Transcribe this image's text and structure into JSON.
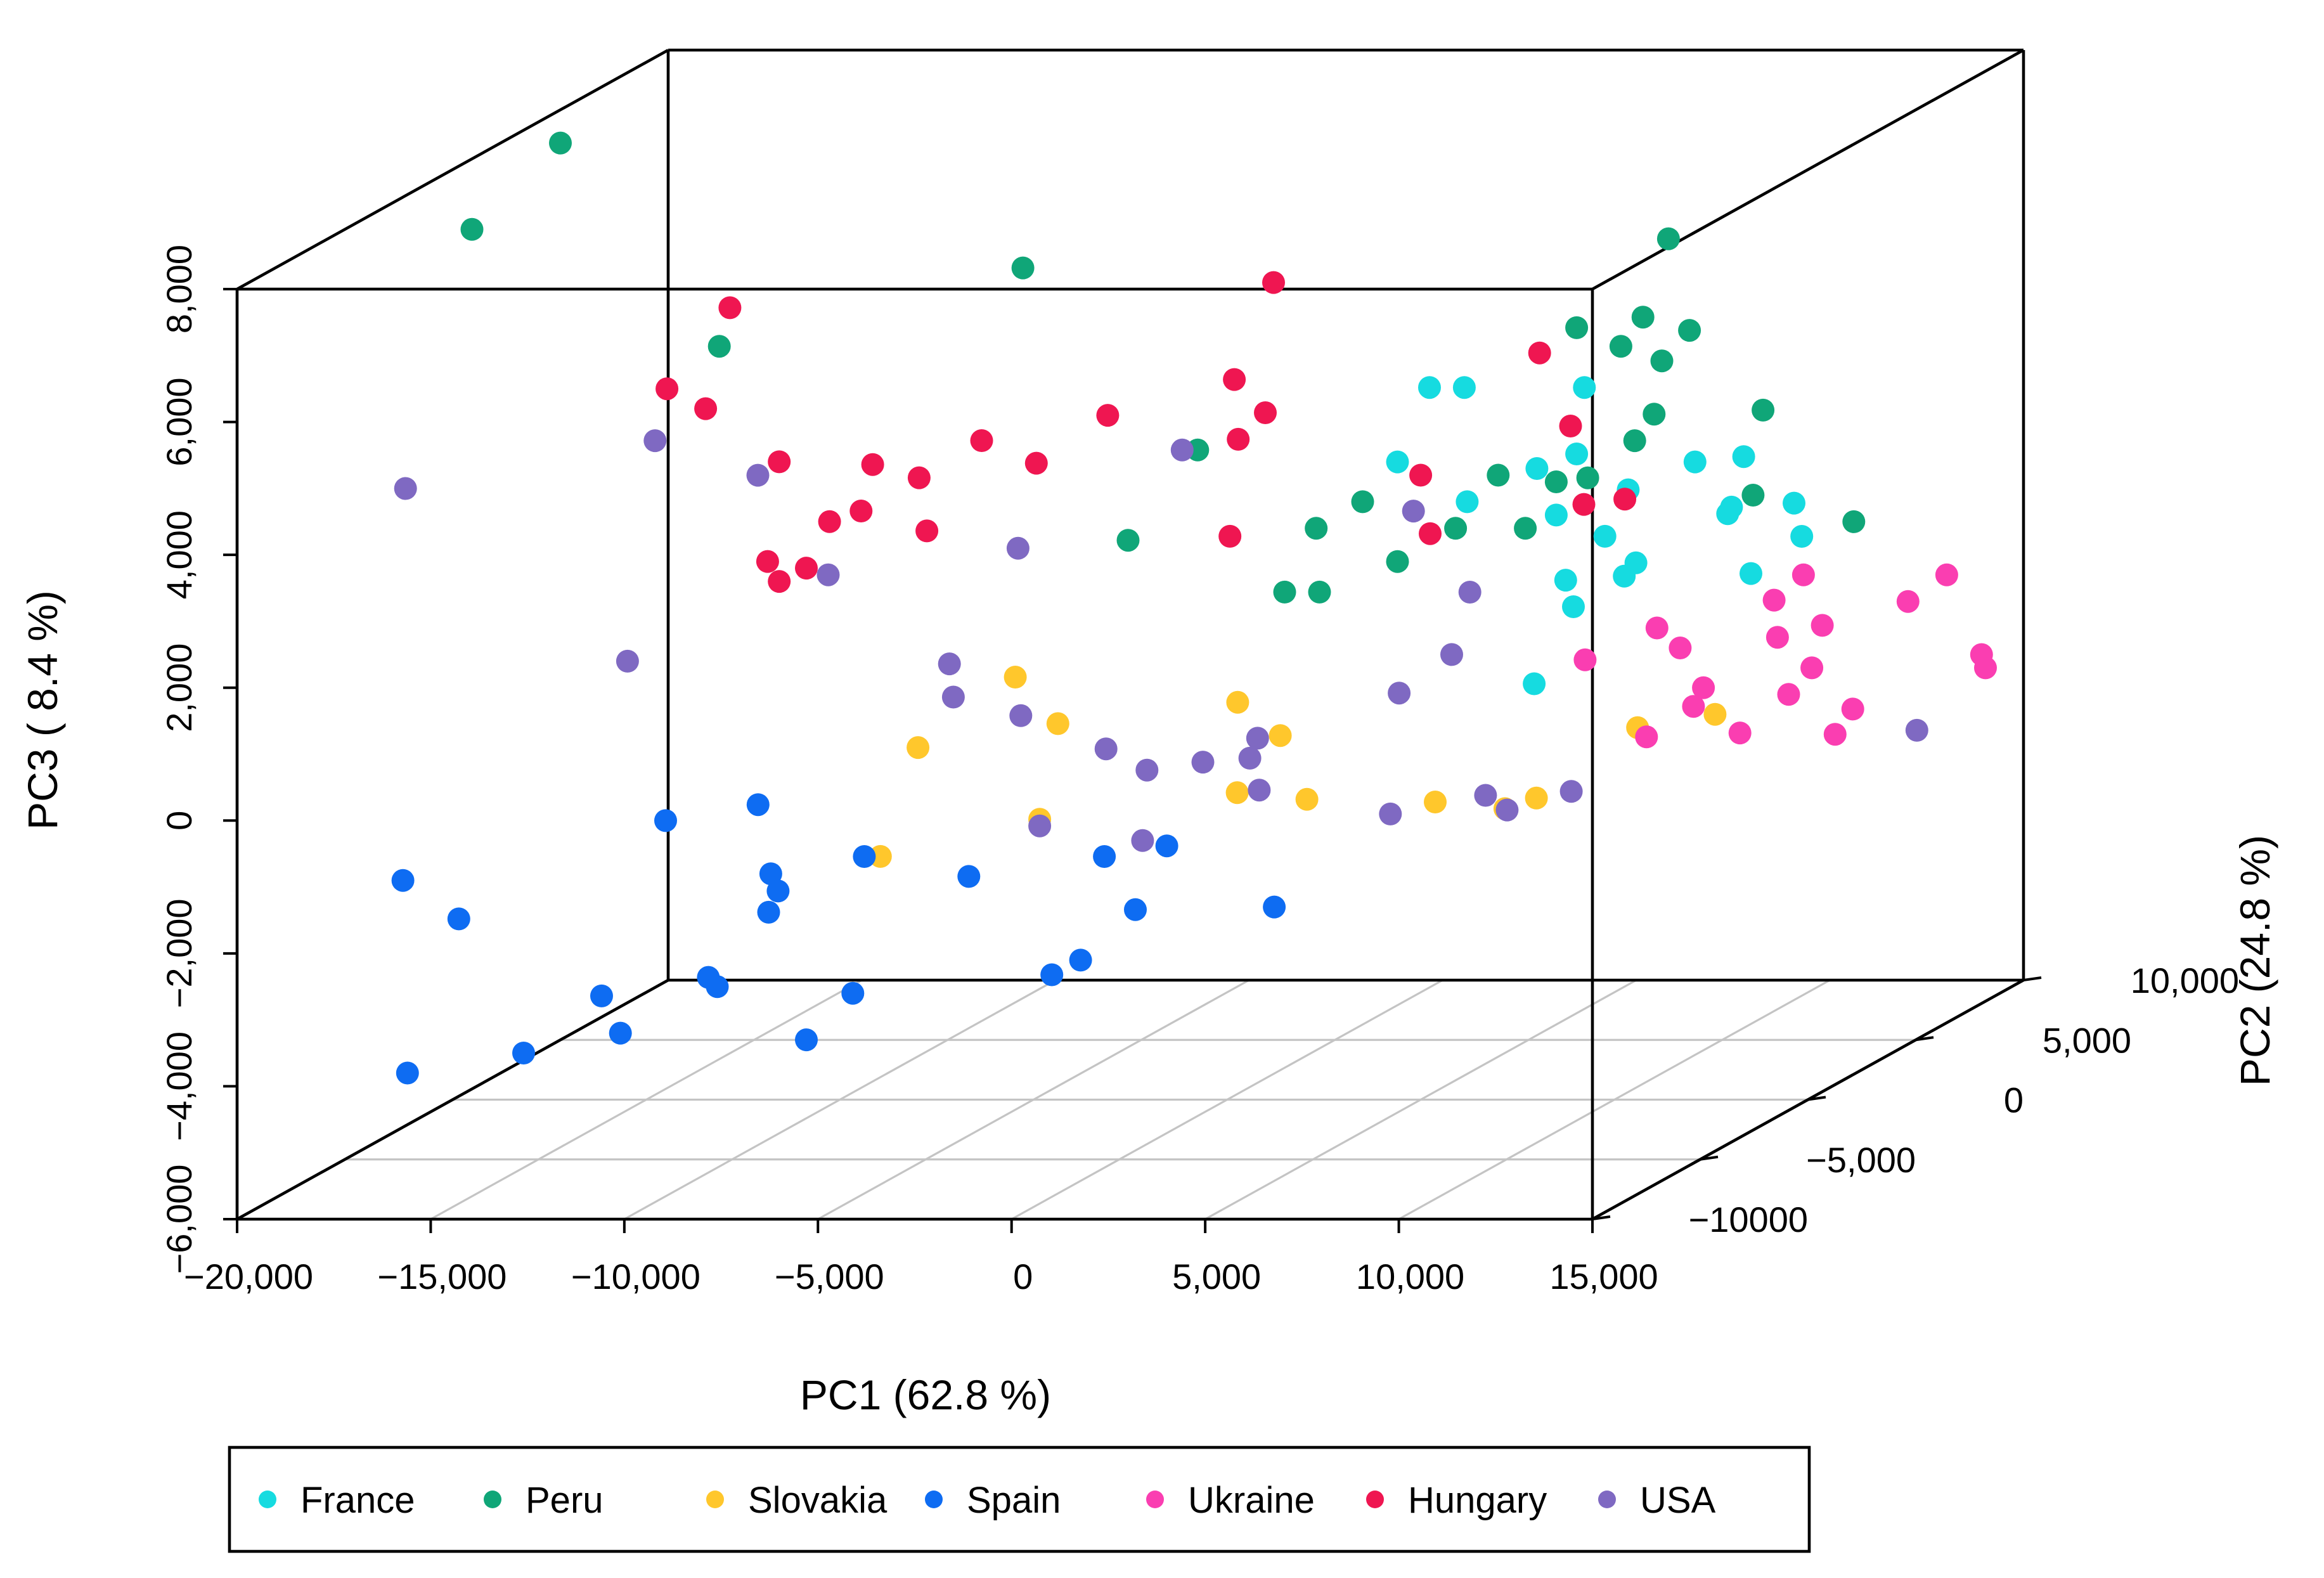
{
  "chart_data": {
    "type": "scatter3d",
    "title": "",
    "xlabel": "PC1 (62.8 %)",
    "ylabel": "PC2 (24.8 %)",
    "zlabel": "PC3 ( 8.4 %)",
    "xlim": [
      -20000,
      15000
    ],
    "ylim": [
      -10000,
      10000
    ],
    "zlim": [
      -6000,
      8000
    ],
    "x_ticks": [
      -20000,
      -15000,
      -10000,
      -5000,
      0,
      5000,
      10000,
      15000
    ],
    "x_tick_labels": [
      "−20,000",
      "−15,000",
      "−10,000",
      "−5,000",
      "0",
      "5,000",
      "10,000",
      "15,000"
    ],
    "y_ticks": [
      -10000,
      -5000,
      0,
      5000,
      10000
    ],
    "y_tick_labels": [
      "−10000",
      "−5,000",
      "0",
      "5,000",
      "10,000"
    ],
    "z_ticks": [
      -6000,
      -4000,
      -2000,
      0,
      2000,
      4000,
      6000,
      8000
    ],
    "z_tick_labels": [
      "−6,000",
      "−4,000",
      "−2,000",
      "0",
      "2,000",
      "4,000",
      "6,000",
      "8,000"
    ],
    "legend_position": "bottom",
    "series": [
      {
        "name": "France",
        "color": "#16dbe0",
        "points": [
          [
            3000,
            4000,
            4000
          ],
          [
            3900,
            4000,
            4000
          ],
          [
            7000,
            4000,
            4000
          ],
          [
            4400,
            0,
            3600
          ],
          [
            6800,
            4000,
            3000
          ],
          [
            9300,
            5000,
            2700
          ],
          [
            10000,
            6000,
            2600
          ],
          [
            11500,
            6000,
            1400
          ],
          [
            8000,
            0,
            3500
          ],
          [
            8500,
            0,
            2800
          ],
          [
            9200,
            1000,
            2300
          ],
          [
            9700,
            1000,
            1700
          ],
          [
            10700,
            4000,
            2100
          ],
          [
            11300,
            6000,
            1900
          ],
          [
            9300,
            -1000,
            2000
          ],
          [
            9500,
            -1000,
            1600
          ],
          [
            11300,
            4000,
            1200
          ],
          [
            10000,
            1000,
            1900
          ],
          [
            10800,
            4000,
            2200
          ],
          [
            9600,
            -3000,
            800
          ],
          [
            6200,
            0,
            3000
          ],
          [
            9800,
            1000,
            3000
          ]
        ]
      },
      {
        "name": "Peru",
        "color": "#10a678",
        "points": [
          [
            -19500,
            0,
            7100
          ],
          [
            -20000,
            5000,
            7500
          ],
          [
            -12000,
            -2000,
            5700
          ],
          [
            -7500,
            4000,
            5800
          ],
          [
            7500,
            7000,
            5700
          ],
          [
            6800,
            4000,
            4900
          ],
          [
            7400,
            6000,
            4700
          ],
          [
            8500,
            3000,
            4800
          ],
          [
            9000,
            4000,
            4400
          ],
          [
            8600,
            6000,
            4500
          ],
          [
            8800,
            4000,
            3600
          ],
          [
            10500,
            6000,
            3300
          ],
          [
            8500,
            0,
            3300
          ],
          [
            7000,
            0,
            3400
          ],
          [
            8300,
            4000,
            3200
          ],
          [
            8200,
            2000,
            3000
          ],
          [
            3500,
            0,
            3000
          ],
          [
            5900,
            0,
            2600
          ],
          [
            -4100,
            6000,
            2700
          ],
          [
            -2000,
            -1000,
            2600
          ],
          [
            2300,
            0,
            2600
          ],
          [
            7700,
            0,
            2600
          ],
          [
            10800,
            5000,
            2200
          ],
          [
            4400,
            0,
            2100
          ],
          [
            3500,
            -2000,
            2000
          ],
          [
            2600,
            -2000,
            2000
          ],
          [
            13400,
            5000,
            1800
          ]
        ]
      },
      {
        "name": "Slovakia",
        "color": "#ffc72c",
        "points": [
          [
            -3800,
            -3000,
            900
          ],
          [
            -2700,
            -3000,
            200
          ],
          [
            -5200,
            -5000,
            200
          ],
          [
            -4500,
            -8000,
            -900
          ],
          [
            -1500,
            -6000,
            -700
          ],
          [
            2500,
            -4000,
            700
          ],
          [
            3600,
            -4000,
            200
          ],
          [
            3600,
            -6000,
            -300
          ],
          [
            5400,
            -6000,
            -400
          ],
          [
            7600,
            -4000,
            -800
          ],
          [
            9400,
            -4000,
            -900
          ],
          [
            10600,
            0,
            -400
          ],
          [
            12600,
            0,
            -200
          ],
          [
            9100,
            -2000,
            -1100
          ]
        ]
      },
      {
        "name": "Spain",
        "color": "#0e6cf2",
        "points": [
          [
            -18500,
            -5000,
            -1800
          ],
          [
            -16500,
            -6000,
            -2200
          ],
          [
            -14500,
            0,
            -1800
          ],
          [
            -11000,
            -2000,
            -1200
          ],
          [
            -9000,
            -5000,
            -1700
          ],
          [
            -8500,
            -6000,
            -2100
          ],
          [
            -7700,
            -3000,
            -1800
          ],
          [
            -7700,
            -7000,
            -1600
          ],
          [
            -5000,
            -3000,
            -2100
          ],
          [
            -1500,
            -3000,
            -1800
          ],
          [
            -1000,
            -1000,
            -2000
          ],
          [
            -1000,
            -5000,
            -3000
          ],
          [
            -700,
            -3000,
            -2600
          ],
          [
            4000,
            -5000,
            -2200
          ],
          [
            -9500,
            -7000,
            -2900
          ],
          [
            -4100,
            -10000,
            -2600
          ],
          [
            -7600,
            -10000,
            -2500
          ],
          [
            -11700,
            -8000,
            -3000
          ],
          [
            -10100,
            -10000,
            -3200
          ],
          [
            -5300,
            -10000,
            -3300
          ],
          [
            -2300,
            -4000,
            -3400
          ],
          [
            -12600,
            -10000,
            -3500
          ],
          [
            -15600,
            -10000,
            -3800
          ]
        ]
      },
      {
        "name": "Ukraine",
        "color": "#fa3eb1",
        "points": [
          [
            11100,
            0,
            1100
          ],
          [
            12100,
            5000,
            1000
          ],
          [
            11900,
            4000,
            800
          ],
          [
            9800,
            -1000,
            800
          ],
          [
            11700,
            0,
            800
          ],
          [
            13100,
            2000,
            600
          ],
          [
            13700,
            3000,
            600
          ],
          [
            14800,
            5000,
            600
          ],
          [
            15800,
            5000,
            1000
          ],
          [
            15100,
            0,
            500
          ],
          [
            12300,
            0,
            200
          ],
          [
            12600,
            -1000,
            100
          ],
          [
            14500,
            0,
            100
          ],
          [
            16700,
            5000,
            -200
          ],
          [
            15600,
            1000,
            -300
          ],
          [
            15700,
            0,
            -500
          ],
          [
            12500,
            -3000,
            0
          ],
          [
            13800,
            -1000,
            -300
          ],
          [
            16800,
            5000,
            -400
          ]
        ]
      },
      {
        "name": "Hungary",
        "color": "#ef1651",
        "points": [
          [
            -9500,
            -6000,
            7000
          ],
          [
            -8900,
            -10000,
            6500
          ],
          [
            -7900,
            -10000,
            6200
          ],
          [
            -6000,
            -10000,
            5400
          ],
          [
            -4700,
            -8000,
            5000
          ],
          [
            -4700,
            -10000,
            4500
          ],
          [
            -3500,
            -8000,
            4800
          ],
          [
            -3000,
            -6000,
            5000
          ],
          [
            -5300,
            -10000,
            3800
          ],
          [
            -5000,
            -8000,
            4300
          ],
          [
            -2700,
            -4000,
            4300
          ],
          [
            -3300,
            -8000,
            4000
          ],
          [
            -6000,
            -10000,
            3600
          ],
          [
            1200,
            0,
            6300
          ],
          [
            1300,
            -2000,
            5200
          ],
          [
            -300,
            -5000,
            5200
          ],
          [
            2100,
            -2000,
            4700
          ],
          [
            1400,
            -2000,
            4300
          ],
          [
            2300,
            -4000,
            3200
          ],
          [
            6400,
            3000,
            4700
          ],
          [
            5000,
            0,
            3400
          ],
          [
            7200,
            3000,
            3600
          ],
          [
            5800,
            -1000,
            2700
          ],
          [
            8100,
            2000,
            2600
          ],
          [
            8600,
            3000,
            2500
          ],
          [
            -6300,
            -10000,
            3900
          ]
        ]
      },
      {
        "name": "USA",
        "color": "#7f69c2",
        "points": [
          [
            -24000,
            5000,
            2300
          ],
          [
            -17000,
            4000,
            3200
          ],
          [
            -12700,
            -5000,
            1500
          ],
          [
            -14900,
            5000,
            2500
          ],
          [
            -10300,
            0,
            1900
          ],
          [
            -5500,
            -3000,
            1100
          ],
          [
            -5400,
            0,
            2300
          ],
          [
            -4500,
            6000,
            2700
          ],
          [
            -3100,
            -4000,
            500
          ],
          [
            -900,
            -4000,
            0
          ],
          [
            -1500,
            -6000,
            -800
          ],
          [
            -400,
            -3000,
            -500
          ],
          [
            1900,
            -2000,
            -200
          ],
          [
            1600,
            -4000,
            -200
          ],
          [
            2500,
            -3000,
            -800
          ],
          [
            1700,
            -2000,
            -500
          ],
          [
            5000,
            -1000,
            300
          ],
          [
            4600,
            3000,
            1100
          ],
          [
            8900,
            -4000,
            -700
          ],
          [
            10000,
            -2000,
            -1000
          ],
          [
            7000,
            -5000,
            -800
          ],
          [
            5800,
            0,
            700
          ],
          [
            8900,
            -3000,
            -1100
          ],
          [
            16700,
            2000,
            -800
          ],
          [
            3700,
            2000,
            2500
          ],
          [
            -5400,
            -3000,
            600
          ],
          [
            600,
            -5000,
            -1200
          ]
        ]
      }
    ]
  }
}
